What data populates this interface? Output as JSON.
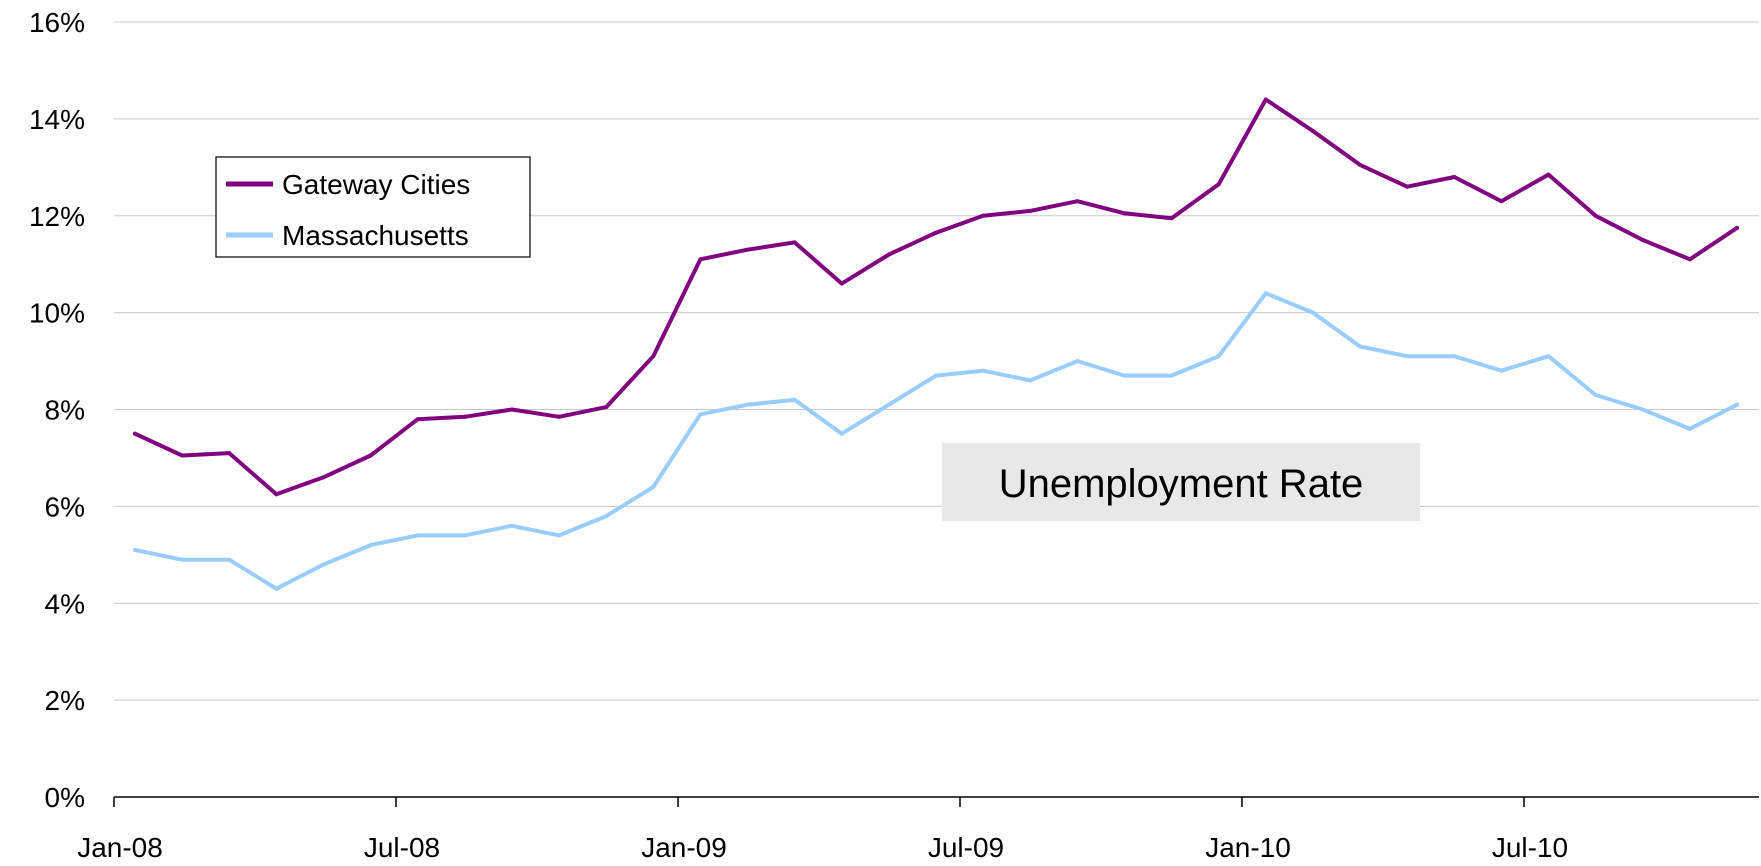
{
  "chart_data": {
    "type": "line",
    "y_tick_labels": [
      "0%",
      "2%",
      "4%",
      "6%",
      "8%",
      "10%",
      "12%",
      "14%",
      "16%"
    ],
    "ylim": [
      0,
      16
    ],
    "x_tick_labels": [
      "Jan-08",
      "Jul-08",
      "Jan-09",
      "Jul-09",
      "Jan-10",
      "Jul-10"
    ],
    "x": [
      "2008-01",
      "2008-02",
      "2008-03",
      "2008-04",
      "2008-05",
      "2008-06",
      "2008-07",
      "2008-08",
      "2008-09",
      "2008-10",
      "2008-11",
      "2008-12",
      "2009-01",
      "2009-02",
      "2009-03",
      "2009-04",
      "2009-05",
      "2009-06",
      "2009-07",
      "2009-08",
      "2009-09",
      "2009-10",
      "2009-11",
      "2009-12",
      "2010-01",
      "2010-02",
      "2010-03",
      "2010-04",
      "2010-05",
      "2010-06",
      "2010-07",
      "2010-08",
      "2010-09",
      "2010-10",
      "2010-11"
    ],
    "series": [
      {
        "name": "Gateway Cities",
        "color": "#800080",
        "values": [
          7.5,
          7.05,
          7.1,
          6.25,
          6.6,
          7.05,
          7.8,
          7.85,
          8.0,
          7.85,
          8.05,
          9.1,
          11.1,
          11.3,
          11.45,
          10.6,
          11.2,
          11.65,
          12.0,
          12.1,
          12.3,
          12.05,
          11.95,
          12.65,
          14.4,
          13.75,
          13.05,
          12.6,
          12.8,
          12.3,
          12.85,
          12.0,
          11.5,
          11.1,
          11.75
        ]
      },
      {
        "name": "Massachusetts",
        "color": "#99ccff",
        "values": [
          5.1,
          4.9,
          4.9,
          4.3,
          4.8,
          5.2,
          5.4,
          5.4,
          5.6,
          5.4,
          5.8,
          6.4,
          7.9,
          8.1,
          8.2,
          7.5,
          8.1,
          8.7,
          8.8,
          8.6,
          9.0,
          8.7,
          8.7,
          9.1,
          10.4,
          10.0,
          9.3,
          9.1,
          9.1,
          8.8,
          9.1,
          8.3,
          8.0,
          7.6,
          8.1
        ]
      }
    ],
    "annotation": "Unemployment Rate",
    "legend_position": "top-left",
    "grid": true
  }
}
